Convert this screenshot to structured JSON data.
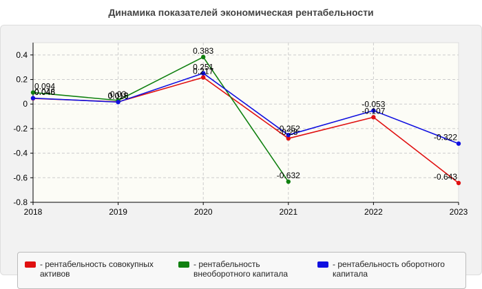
{
  "title": "Динамика показателей экономическая рентабельности",
  "chart_data": {
    "type": "line",
    "title": "Динамика показателей экономическая рентабельности",
    "x": [
      "2018",
      "2019",
      "2020",
      "2021",
      "2022",
      "2023"
    ],
    "ylim": [
      -0.8,
      0.5
    ],
    "yticks": [
      "0.4",
      "0.2",
      "0",
      "-0.2",
      "-0.4",
      "-0.6",
      "-0.8"
    ],
    "grid": true,
    "legend_position": "bottom",
    "series": [
      {
        "name": "рентабельность совокупных активов",
        "color": "#e01010",
        "values": [
          0.046,
          0.018,
          0.217,
          -0.28,
          -0.107,
          -0.643
        ],
        "labels": [
          "0.046",
          "0.018",
          "0.217",
          "-0.28",
          "-0.107",
          "-0.643"
        ]
      },
      {
        "name": "рентабельность внеоборотного капитала",
        "color": "#108010",
        "values": [
          0.094,
          0.03,
          0.383,
          -0.632,
          null,
          null
        ],
        "labels": [
          "0.094",
          "0.03",
          "0.383",
          "-0.632",
          "",
          ""
        ]
      },
      {
        "name": "рентабельность оборотного капитала",
        "color": "#1010e0",
        "values": [
          0.048,
          0.016,
          0.251,
          -0.252,
          -0.053,
          -0.322
        ],
        "labels": [
          "0.048",
          "0.016",
          "0.251",
          "-0.252",
          "-0.053",
          "-0.322"
        ]
      }
    ]
  }
}
